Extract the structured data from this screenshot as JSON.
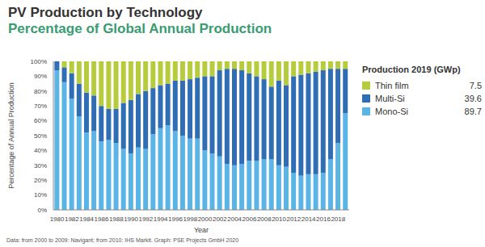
{
  "chart_data": {
    "type": "bar",
    "title": "PV Production by Technology",
    "subtitle": "Percentage of Global Annual Production",
    "x_label": "Year",
    "y_label": "Percentage of Annual Production",
    "source": "Data: from 2000 to 2009: Navigant; from 2010: IHS Markit. Graph: PSE Projects GmbH 2020",
    "legend_title": "Production 2019 (GWp)",
    "legend": "right",
    "stacked": true,
    "grid": false,
    "categories": [
      "1980",
      null,
      "1982",
      null,
      "1984",
      null,
      "1986",
      null,
      "1988",
      null,
      "1990",
      null,
      "1992",
      null,
      "1994",
      null,
      "1996",
      null,
      "1998",
      null,
      "2000",
      null,
      "2002",
      null,
      "2004",
      null,
      "2006",
      null,
      "2008",
      null,
      "2010",
      null,
      "2012",
      null,
      "2014",
      null,
      "2016",
      null,
      "2018",
      null
    ],
    "ylim": [
      0,
      100
    ],
    "yticks": [
      {
        "value": 0,
        "label": "0%"
      },
      {
        "value": 10,
        "label": "10%"
      },
      {
        "value": 20,
        "label": "20%"
      },
      {
        "value": 30,
        "label": "30%"
      },
      {
        "value": 40,
        "label": "40%"
      },
      {
        "value": 50,
        "label": "50%"
      },
      {
        "value": 60,
        "label": "60%"
      },
      {
        "value": 70,
        "label": "70%"
      },
      {
        "value": 80,
        "label": "80%"
      },
      {
        "value": 90,
        "label": "90%"
      },
      {
        "value": 100,
        "label": "100%"
      }
    ],
    "series": [
      {
        "name": "Mono-Si",
        "color": "#5ab4e5",
        "production": 89.7,
        "values": [
          94,
          86,
          75,
          63,
          52,
          53,
          46,
          47,
          45,
          41,
          38,
          42,
          41,
          51,
          55,
          57,
          53,
          50,
          48,
          48,
          40,
          38,
          36,
          31,
          30,
          31,
          33,
          33,
          34,
          34,
          30,
          29,
          25,
          23,
          24,
          24,
          25,
          34,
          45,
          65
        ]
      },
      {
        "name": "Multi-Si",
        "color": "#2f6db5",
        "production": 39.6,
        "values": [
          6,
          10,
          17,
          22,
          27,
          24,
          24,
          21,
          23,
          31,
          36,
          36,
          39,
          31,
          29,
          28,
          34,
          37,
          40,
          41,
          50,
          52,
          58,
          64,
          65,
          63,
          59,
          57,
          54,
          49,
          57,
          55,
          65,
          68,
          68,
          69,
          69,
          61,
          50,
          30
        ]
      },
      {
        "name": "Thin film",
        "color": "#b6cc3c",
        "production": 7.5,
        "values": [
          0,
          4,
          8,
          15,
          21,
          23,
          30,
          32,
          32,
          28,
          26,
          22,
          20,
          18,
          16,
          15,
          13,
          13,
          12,
          11,
          10,
          10,
          6,
          5,
          5,
          6,
          8,
          10,
          12,
          17,
          13,
          16,
          10,
          9,
          8,
          7,
          6,
          5,
          5,
          5
        ]
      }
    ]
  }
}
